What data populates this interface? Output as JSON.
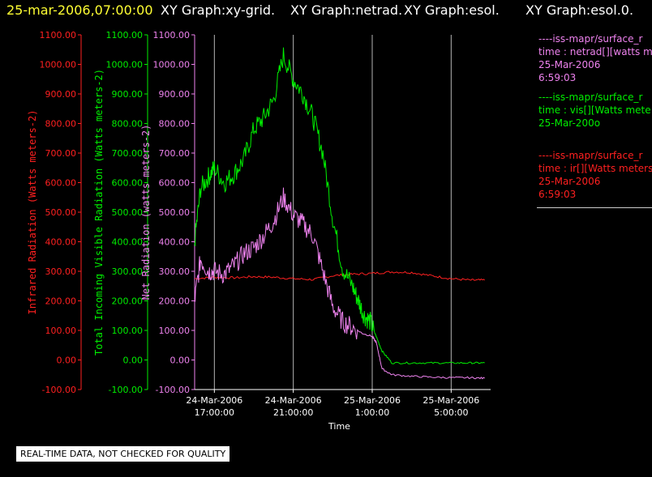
{
  "header": {
    "timestamp": "25-mar-2006,07:00:00",
    "graphs": [
      "XY Graph:xy-grid.",
      "XY Graph:netrad.",
      "XY Graph:esol.",
      "XY Graph:esol.0."
    ]
  },
  "notice": "REAL-TIME DATA, NOT CHECKED FOR QUALITY",
  "legend": [
    {
      "lines": [
        "----iss-mapr/surface_r",
        "time : netrad[][watts m",
        "25-Mar-2006",
        "6:59:03"
      ],
      "color": "#ee82ee"
    },
    {
      "lines": [
        "----iss-mapr/surface_r",
        "time : vis[][Watts mete",
        "25-Mar-200o"
      ],
      "color": "#00ee00"
    },
    {
      "lines": [
        "----iss-mapr/surface_r",
        "time : ir[][Watts meters",
        "25-Mar-2006",
        "6:59:03"
      ],
      "color": "#ff2020"
    }
  ],
  "chart_data": {
    "type": "line",
    "xlabel": "Time",
    "x_ticks": [
      {
        "hour": 17,
        "label1": "24-Mar-2006",
        "label2": "17:00:00"
      },
      {
        "hour": 21,
        "label1": "24-Mar-2006",
        "label2": "21:00:00"
      },
      {
        "hour": 25,
        "label1": "25-Mar-2006",
        "label2": "1:00:00"
      },
      {
        "hour": 29,
        "label1": "25-Mar-2006",
        "label2": "5:00:00"
      }
    ],
    "x_unit": "hours since 24-Mar-2006 00:00",
    "xlim": [
      16.0,
      31.0
    ],
    "ylim": [
      -100,
      1100
    ],
    "y_ticks": [
      -100,
      0,
      100,
      200,
      300,
      400,
      500,
      600,
      700,
      800,
      900,
      1000,
      1100
    ],
    "y_tick_labels": [
      "-100.00",
      "0.00",
      "100.00",
      "200.00",
      "300.00",
      "400.00",
      "500.00",
      "600.00",
      "700.00",
      "800.00",
      "900.00",
      "1000.00",
      "1100.00"
    ],
    "axes": [
      {
        "label": "Infrared Radiation (Watts meters-2)",
        "color": "#ff2020"
      },
      {
        "label": "Total Incoming Visible Radiation (Watts meters-2)",
        "color": "#00ee00"
      },
      {
        "label": "Net Radiation (watts meters-2)",
        "color": "#ee82ee"
      }
    ],
    "grid_x": true,
    "series": [
      {
        "name": "ir",
        "color": "#ff2020",
        "x": [
          16.0,
          17,
          18,
          19,
          20,
          21,
          22,
          23,
          24,
          25,
          26,
          27,
          28,
          29,
          30,
          30.7
        ],
        "y": [
          275,
          280,
          278,
          282,
          280,
          275,
          272,
          285,
          290,
          293,
          298,
          296,
          285,
          275,
          270,
          270
        ]
      },
      {
        "name": "vis",
        "color": "#00ee00",
        "x": [
          16.0,
          16.3,
          16.7,
          17.0,
          17.5,
          18,
          18.5,
          19,
          19.5,
          20,
          20.5,
          21,
          21.5,
          22,
          22.5,
          23,
          23.5,
          24,
          24.3,
          24.6,
          24.9,
          25.2,
          25.5,
          26,
          27,
          28,
          29,
          30,
          30.7
        ],
        "y": [
          400,
          580,
          620,
          650,
          600,
          630,
          680,
          780,
          820,
          880,
          1030,
          950,
          900,
          820,
          700,
          480,
          310,
          250,
          200,
          150,
          130,
          80,
          30,
          -10,
          -10,
          -10,
          -10,
          -10,
          -10
        ]
      },
      {
        "name": "netrad",
        "color": "#ee82ee",
        "x": [
          16.0,
          16.3,
          16.7,
          17,
          17.5,
          18,
          18.5,
          19,
          19.5,
          20,
          20.5,
          21,
          21.5,
          22,
          22.5,
          23,
          23.5,
          24,
          24.5,
          25,
          25.2,
          25.5,
          26,
          27,
          28,
          29,
          30,
          30.7
        ],
        "y": [
          200,
          340,
          300,
          300,
          290,
          320,
          360,
          380,
          420,
          470,
          550,
          490,
          460,
          420,
          300,
          180,
          130,
          110,
          90,
          80,
          60,
          -30,
          -50,
          -55,
          -58,
          -60,
          -60,
          -62
        ]
      }
    ]
  }
}
